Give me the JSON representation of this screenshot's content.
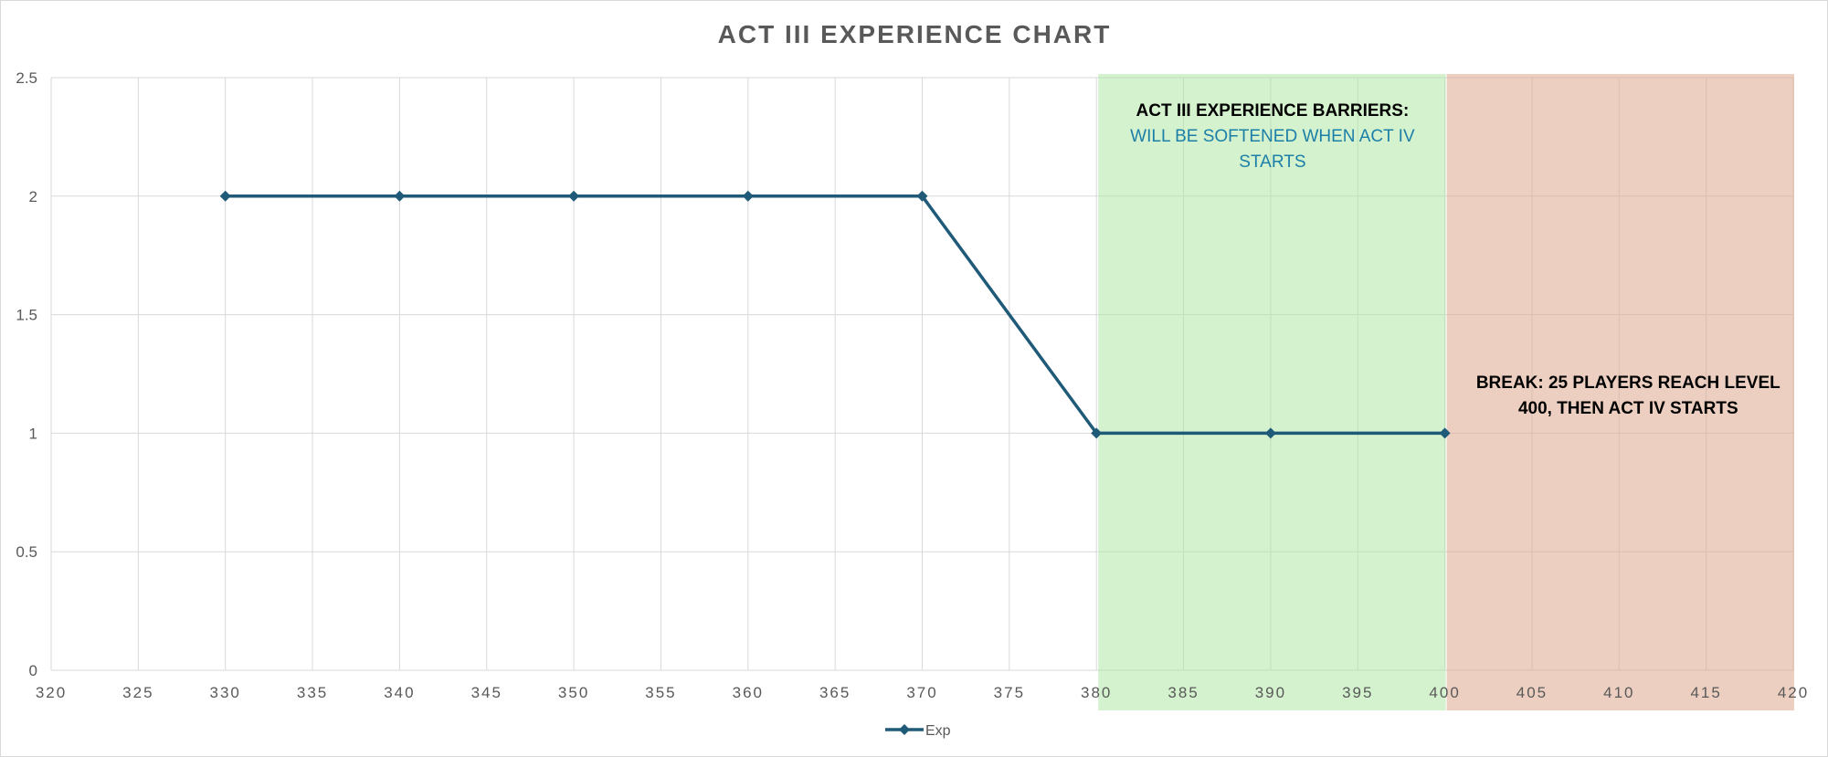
{
  "chart_data": {
    "type": "line",
    "title": "ACT III EXPERIENCE  CHART",
    "xlabel": "",
    "ylabel": "",
    "xlim": [
      320,
      420
    ],
    "ylim": [
      0,
      2.5
    ],
    "x_ticks": [
      320,
      325,
      330,
      335,
      340,
      345,
      350,
      355,
      360,
      365,
      370,
      375,
      380,
      385,
      390,
      395,
      400,
      405,
      410,
      415,
      420
    ],
    "y_ticks": [
      0,
      0.5,
      1,
      1.5,
      2,
      2.5
    ],
    "grid": true,
    "series": [
      {
        "name": "Exp",
        "color": "#1f5a78",
        "marker": "diamond",
        "x": [
          330,
          340,
          350,
          360,
          370,
          380,
          390,
          400
        ],
        "y": [
          2,
          2,
          2,
          2,
          2,
          1,
          1,
          1
        ]
      }
    ],
    "regions": [
      {
        "x_range": [
          380,
          400
        ],
        "color": "#a9e59c",
        "opacity": 0.5,
        "annotation": {
          "lines": [
            {
              "text": "ACT III EXPERIENCE BARRIERS:",
              "style": "bold",
              "color": "#000000"
            },
            {
              "text": "WILL BE SOFTENED WHEN ACT IV",
              "style": "normal",
              "color": "#1c7fa8"
            },
            {
              "text": "STARTS",
              "style": "normal",
              "color": "#1c7fa8"
            }
          ]
        }
      },
      {
        "x_range": [
          400,
          420
        ],
        "color": "#dca78d",
        "opacity": 0.55,
        "annotation": {
          "lines": [
            {
              "text": "BREAK: 25 PLAYERS REACH LEVEL",
              "style": "bold",
              "color": "#000000"
            },
            {
              "text": "400, THEN ACT IV STARTS",
              "style": "bold",
              "color": "#000000"
            }
          ]
        }
      }
    ],
    "legend": {
      "position": "bottom",
      "entries": [
        "Exp"
      ]
    }
  }
}
